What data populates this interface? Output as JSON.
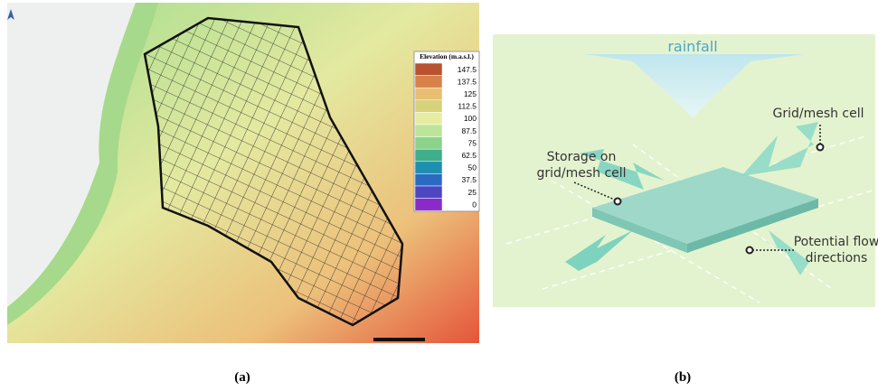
{
  "panel_a": {
    "legend": {
      "title": "Elevation (m.a.s.l.)",
      "items": [
        {
          "label": 147.5,
          "color": "#b9532f"
        },
        {
          "label": 137.5,
          "color": "#d9814a"
        },
        {
          "label": 125,
          "color": "#e9be72"
        },
        {
          "label": 112.5,
          "color": "#d6d27c"
        },
        {
          "label": 100,
          "color": "#e6eda0"
        },
        {
          "label": 87.5,
          "color": "#bde59a"
        },
        {
          "label": 75,
          "color": "#8bd38a"
        },
        {
          "label": 62.5,
          "color": "#3fae8a"
        },
        {
          "label": 50,
          "color": "#1f8fb0"
        },
        {
          "label": 37.5,
          "color": "#2a6bc2"
        },
        {
          "label": 25,
          "color": "#4a47c0"
        },
        {
          "label": 0,
          "color": "#8a2bc9"
        }
      ]
    },
    "caption": "(a)"
  },
  "panel_b": {
    "rainfall": "rainfall",
    "storage_line1": "Storage on",
    "storage_line2": "grid/mesh cell",
    "grid_cell": "Grid/mesh cell",
    "flow_line1": "Potential flow",
    "flow_line2": "directions",
    "caption": "(b)"
  }
}
